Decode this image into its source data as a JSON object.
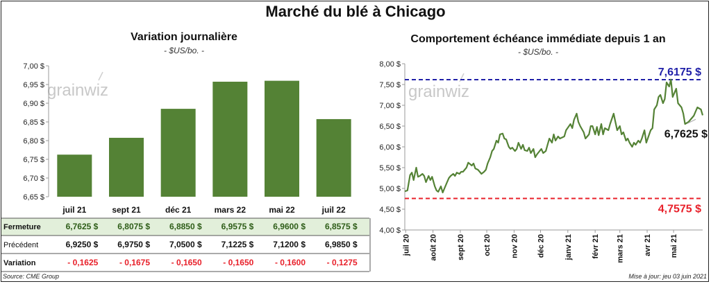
{
  "page": {
    "title": "Marché du blé à Chicago",
    "source": "Source: CME Group",
    "updated": "Mise à jour: jeu 03 juin 2021",
    "watermark": "grainwiz"
  },
  "left": {
    "title": "Variation journalière",
    "subtitle": "- $US/bo. -"
  },
  "right": {
    "title": "Comportement échéance immédiate depuis 1 an",
    "subtitle": "- $US/bo. -"
  },
  "table": {
    "rows": [
      {
        "label": "Fermeture",
        "values": [
          "6,7625 $",
          "6,8075 $",
          "6,8850 $",
          "6,9575 $",
          "6,9600 $",
          "6,8575 $"
        ]
      },
      {
        "label": "Précédent",
        "values": [
          "6,9250 $",
          "6,9750 $",
          "7,0500 $",
          "7,1225 $",
          "7,1200 $",
          "6,9850 $"
        ]
      },
      {
        "label": "Variation",
        "values": [
          "- 0,1625",
          "- 0,1675",
          "- 0,1650",
          "- 0,1650",
          "- 0,1600",
          "- 0,1275"
        ]
      }
    ]
  },
  "colors": {
    "bar": "#548235",
    "line": "#548235",
    "high": "#1f1fa8",
    "low": "#e8202a",
    "highlight_row": "#e2efda"
  },
  "chart_data": [
    {
      "type": "bar",
      "categories": [
        "juil 21",
        "sept 21",
        "déc 21",
        "mars 22",
        "mai 22",
        "juil 22"
      ],
      "values": [
        6.7625,
        6.8075,
        6.885,
        6.9575,
        6.96,
        6.8575
      ],
      "title": "Variation journalière",
      "ylabel": "$US/bo.",
      "ylim": [
        6.65,
        7.0
      ],
      "yticks": [
        6.65,
        6.7,
        6.75,
        6.8,
        6.85,
        6.9,
        6.95,
        7.0
      ],
      "ytick_labels": [
        "6,65 $",
        "6,70 $",
        "6,75 $",
        "6,80 $",
        "6,85 $",
        "6,90 $",
        "6,95 $",
        "7,00 $"
      ],
      "grid": false
    },
    {
      "type": "line",
      "title": "Comportement échéance immédiate depuis 1 an",
      "ylabel": "$US/bo.",
      "ylim": [
        4.0,
        8.0
      ],
      "yticks": [
        4.0,
        4.5,
        5.0,
        5.5,
        6.0,
        6.5,
        7.0,
        7.5,
        8.0
      ],
      "ytick_labels": [
        "4,00 $",
        "4,50 $",
        "5,00 $",
        "5,50 $",
        "6,00 $",
        "6,50 $",
        "7,00 $",
        "7,50 $",
        "8,00 $"
      ],
      "xlim": [
        "2020-06-30",
        "2021-06-03"
      ],
      "xtick_dates": [
        "2020-07-01",
        "2020-08-01",
        "2020-09-01",
        "2020-10-01",
        "2020-11-01",
        "2020-12-01",
        "2021-01-01",
        "2021-02-01",
        "2021-03-01",
        "2021-04-01",
        "2021-05-01"
      ],
      "xtick_labels": [
        "juil 20",
        "août 20",
        "sept 20",
        "oct 20",
        "nov 20",
        "déc 20",
        "janv 21",
        "févr 21",
        "mars 21",
        "avr 21",
        "mai 21"
      ],
      "series": [
        {
          "x": [
            "2020-06-30",
            "2020-07-03",
            "2020-07-06",
            "2020-07-08",
            "2020-07-10",
            "2020-07-13",
            "2020-07-15",
            "2020-07-17",
            "2020-07-20",
            "2020-07-22",
            "2020-07-24",
            "2020-07-27",
            "2020-07-29",
            "2020-07-31",
            "2020-08-03",
            "2020-08-05",
            "2020-08-07",
            "2020-08-10",
            "2020-08-12",
            "2020-08-14",
            "2020-08-17",
            "2020-08-19",
            "2020-08-21",
            "2020-08-24",
            "2020-08-26",
            "2020-08-28",
            "2020-08-31",
            "2020-09-02",
            "2020-09-04",
            "2020-09-08",
            "2020-09-10",
            "2020-09-14",
            "2020-09-16",
            "2020-09-18",
            "2020-09-21",
            "2020-09-23",
            "2020-09-25",
            "2020-09-28",
            "2020-09-30",
            "2020-10-02",
            "2020-10-05",
            "2020-10-07",
            "2020-10-09",
            "2020-10-12",
            "2020-10-14",
            "2020-10-16",
            "2020-10-19",
            "2020-10-21",
            "2020-10-23",
            "2020-10-26",
            "2020-10-28",
            "2020-10-30",
            "2020-11-02",
            "2020-11-04",
            "2020-11-06",
            "2020-11-09",
            "2020-11-11",
            "2020-11-13",
            "2020-11-16",
            "2020-11-18",
            "2020-11-20",
            "2020-11-23",
            "2020-11-25",
            "2020-11-27",
            "2020-11-30",
            "2020-12-02",
            "2020-12-04",
            "2020-12-07",
            "2020-12-09",
            "2020-12-11",
            "2020-12-14",
            "2020-12-16",
            "2020-12-18",
            "2020-12-21",
            "2020-12-23",
            "2020-12-28",
            "2020-12-30",
            "2021-01-04",
            "2021-01-06",
            "2021-01-08",
            "2021-01-11",
            "2021-01-13",
            "2021-01-15",
            "2021-01-19",
            "2021-01-21",
            "2021-01-25",
            "2021-01-27",
            "2021-01-29",
            "2021-02-01",
            "2021-02-03",
            "2021-02-05",
            "2021-02-08",
            "2021-02-10",
            "2021-02-12",
            "2021-02-16",
            "2021-02-18",
            "2021-02-22",
            "2021-02-24",
            "2021-02-26",
            "2021-03-01",
            "2021-03-03",
            "2021-03-05",
            "2021-03-08",
            "2021-03-10",
            "2021-03-12",
            "2021-03-15",
            "2021-03-17",
            "2021-03-19",
            "2021-03-22",
            "2021-03-24",
            "2021-03-26",
            "2021-03-29",
            "2021-03-31",
            "2021-04-05",
            "2021-04-07",
            "2021-04-09",
            "2021-04-12",
            "2021-04-14",
            "2021-04-16",
            "2021-04-19",
            "2021-04-21",
            "2021-04-23",
            "2021-04-26",
            "2021-04-28",
            "2021-04-30",
            "2021-05-04",
            "2021-05-06",
            "2021-05-10",
            "2021-05-12",
            "2021-05-14",
            "2021-05-18",
            "2021-05-20",
            "2021-05-24",
            "2021-05-26",
            "2021-05-28",
            "2021-06-01",
            "2021-06-03"
          ],
          "y": [
            4.93,
            4.95,
            5.32,
            5.38,
            5.2,
            5.5,
            5.28,
            5.3,
            5.35,
            5.3,
            5.15,
            5.3,
            5.2,
            5.28,
            5.05,
            4.95,
            4.92,
            5.05,
            4.9,
            5.0,
            5.15,
            5.25,
            5.3,
            5.35,
            5.3,
            5.38,
            5.35,
            5.4,
            5.4,
            5.5,
            5.62,
            5.55,
            5.6,
            5.48,
            5.45,
            5.4,
            5.35,
            5.4,
            5.45,
            5.6,
            5.75,
            5.9,
            5.95,
            6.15,
            6.1,
            6.3,
            6.32,
            6.2,
            6.18,
            6.0,
            5.95,
            5.98,
            5.9,
            5.95,
            6.1,
            5.95,
            6.05,
            5.92,
            5.9,
            5.98,
            5.85,
            5.95,
            5.75,
            5.82,
            5.9,
            5.95,
            5.85,
            5.9,
            6.05,
            6.2,
            6.1,
            6.3,
            6.15,
            6.25,
            6.2,
            6.25,
            6.4,
            6.55,
            6.45,
            6.65,
            6.8,
            6.6,
            6.5,
            6.35,
            6.2,
            6.3,
            6.5,
            6.5,
            6.3,
            6.48,
            6.28,
            6.55,
            6.3,
            6.45,
            6.4,
            6.55,
            6.8,
            6.6,
            6.4,
            6.5,
            6.3,
            6.35,
            6.15,
            6.2,
            6.1,
            6.0,
            6.1,
            6.05,
            6.15,
            6.1,
            6.2,
            6.4,
            6.1,
            6.4,
            6.45,
            6.9,
            7.0,
            7.2,
            7.25,
            7.05,
            7.15,
            7.55,
            7.45,
            7.62,
            7.2,
            7.4,
            7.05,
            6.95,
            6.8,
            6.55,
            6.6,
            6.65,
            6.75,
            6.85,
            6.95,
            6.9,
            6.76
          ]
        }
      ],
      "annotations": [
        {
          "label": "7,6175 $",
          "y": 7.6175,
          "style": "dashed-line-high"
        },
        {
          "label": "4,7575 $",
          "y": 4.7575,
          "style": "dashed-line-low"
        },
        {
          "label": "6,7625 $",
          "y": 6.7625,
          "style": "last-value"
        }
      ],
      "grid": false
    }
  ]
}
